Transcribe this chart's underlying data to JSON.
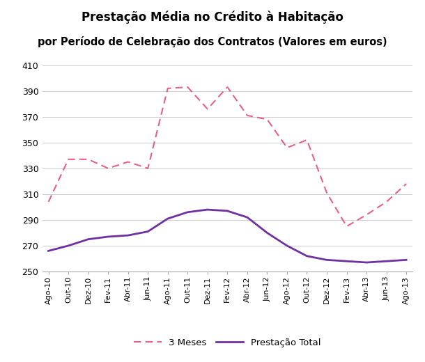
{
  "title1": "Prestação Média no Crédito à Habitação",
  "title2": "por Período de Celebração dos Contratos (Valores em euros)",
  "x_labels": [
    "Ago-10",
    "Out-10",
    "Dez-10",
    "Fev-11",
    "Abr-11",
    "Jun-11",
    "Ago-11",
    "Out-11",
    "Dez-11",
    "Fev-12",
    "Abr-12",
    "Jun-12",
    "Ago-12",
    "Out-12",
    "Dez-12",
    "Fev-13",
    "Abr-13",
    "Jun-13",
    "Ago-13"
  ],
  "total": [
    266,
    270,
    275,
    277,
    278,
    281,
    291,
    296,
    298,
    297,
    292,
    280,
    270,
    262,
    259,
    258,
    257,
    258,
    259
  ],
  "meses3": [
    304,
    337,
    337,
    330,
    335,
    330,
    392,
    393,
    376,
    393,
    371,
    368,
    346,
    352,
    311,
    285,
    294,
    304,
    318
  ],
  "ylim": [
    250,
    410
  ],
  "yticks": [
    250,
    270,
    290,
    310,
    330,
    350,
    370,
    390,
    410
  ],
  "total_color": "#7030a0",
  "meses3_color": "#e8608a",
  "background_color": "#ffffff",
  "legend_total": "Prestação Total",
  "legend_meses": "3 Meses",
  "figsize": [
    6.1,
    5.2
  ],
  "dpi": 100
}
